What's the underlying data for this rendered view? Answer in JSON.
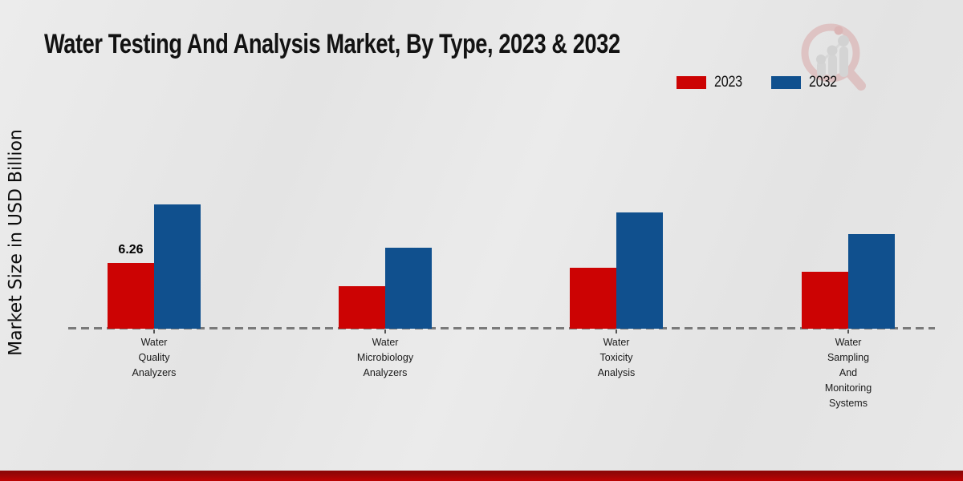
{
  "title": "Water Testing And Analysis Market, By Type, 2023 & 2032",
  "y_axis_label": "Market Size in USD Billion",
  "legend": {
    "items": [
      {
        "label": "2023",
        "color": "#cc0303"
      },
      {
        "label": "2032",
        "color": "#10508e"
      }
    ]
  },
  "logo": {
    "name": "market-research-magnifier-logo"
  },
  "colors": {
    "series_2023": "#cc0303",
    "series_2032": "#10508e",
    "bottom_bar": "#bd0303",
    "baseline": "#7a7a7a",
    "background": "#e8e8e8"
  },
  "chart_data": {
    "type": "bar",
    "title": "Water Testing And Analysis Market, By Type, 2023 & 2032",
    "xlabel": "",
    "ylabel": "Market Size in USD Billion",
    "categories": [
      "Water Quality Analyzers",
      "Water Microbiology Analyzers",
      "Water Toxicity Analysis",
      "Water Sampling And Monitoring Systems"
    ],
    "label_lines": [
      [
        "Water",
        "Quality",
        "Analyzers"
      ],
      [
        "Water",
        "Microbiology",
        "Analyzers"
      ],
      [
        "Water",
        "Toxicity",
        "Analysis"
      ],
      [
        "Water",
        "Sampling",
        "And",
        "Monitoring",
        "Systems"
      ]
    ],
    "series": [
      {
        "name": "2023",
        "color": "#cc0303",
        "values": [
          6.26,
          4.05,
          5.8,
          5.4
        ]
      },
      {
        "name": "2032",
        "color": "#10508e",
        "values": [
          11.8,
          7.7,
          11.05,
          9.0
        ]
      }
    ],
    "bar_label": {
      "series_index": 0,
      "category_index": 0,
      "text": "6.26"
    },
    "y_axis_ticks_visible": false,
    "grid": false,
    "baseline_style": "dashed",
    "legend_position": "top-right"
  }
}
